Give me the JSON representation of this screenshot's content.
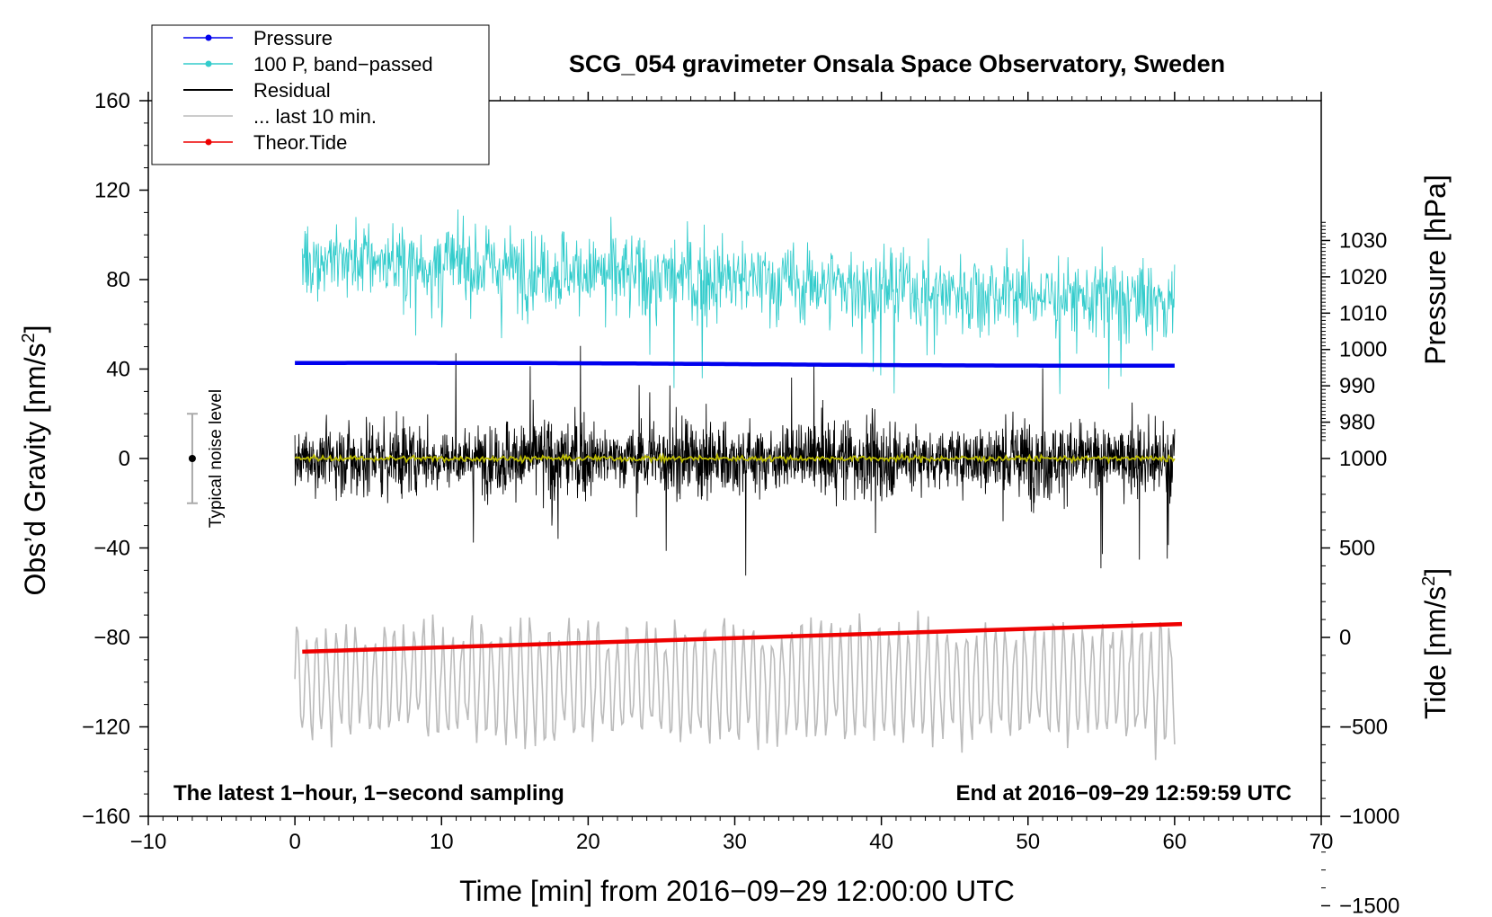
{
  "chart_data": {
    "type": "line",
    "title": "SCG_054 gravimeter Onsala Space Observatory, Sweden",
    "xlabel": "Time [min] from 2016−09−29 12:00:00 UTC",
    "ylabel": "Obs’d Gravity [nm/s",
    "ylabel_sup": "2",
    "ylabel_end": "]",
    "ylabel_right_top": "Pressure [hPa]",
    "ylabel_right_bottom": "Tide [nm/s",
    "ylabel_right_bottom_sup": "2",
    "ylabel_right_bottom_end": "]",
    "xlim": [
      -10,
      70
    ],
    "ylim": [
      -160,
      160
    ],
    "pressure_axis": {
      "value_at_gravity_zero": 970,
      "hpa_per_gravity_unit": 0.6154
    },
    "tide_axis": {
      "value_at_gravity_zero": 0,
      "tide_per_gravity_unit": 12.5,
      "offset_gravity": -80
    },
    "x_ticks": [
      {
        "v": -10,
        "label": "−10"
      },
      {
        "v": 0,
        "label": "0"
      },
      {
        "v": 10,
        "label": "10"
      },
      {
        "v": 20,
        "label": "20"
      },
      {
        "v": 30,
        "label": "30"
      },
      {
        "v": 40,
        "label": "40"
      },
      {
        "v": 50,
        "label": "50"
      },
      {
        "v": 60,
        "label": "60"
      },
      {
        "v": 70,
        "label": "70"
      }
    ],
    "y_ticks": [
      {
        "v": 160,
        "label": "160"
      },
      {
        "v": 120,
        "label": "120"
      },
      {
        "v": 80,
        "label": "80"
      },
      {
        "v": 40,
        "label": "40"
      },
      {
        "v": 0,
        "label": "0"
      },
      {
        "v": -40,
        "label": "−40"
      },
      {
        "v": -80,
        "label": "−80"
      },
      {
        "v": -120,
        "label": "−120"
      },
      {
        "v": -160,
        "label": "−160"
      }
    ],
    "pressure_ticks": [
      {
        "v": 1030,
        "label": "1030"
      },
      {
        "v": 1020,
        "label": "1020"
      },
      {
        "v": 1010,
        "label": "1010"
      },
      {
        "v": 1000,
        "label": "1000"
      },
      {
        "v": 990,
        "label": "990"
      },
      {
        "v": 980,
        "label": "980"
      }
    ],
    "tide_ticks": [
      {
        "v": 1000,
        "label": "1000"
      },
      {
        "v": 500,
        "label": "500"
      },
      {
        "v": 0,
        "label": "0"
      },
      {
        "v": -500,
        "label": "−500"
      },
      {
        "v": -1000,
        "label": "−1000"
      },
      {
        "v": -1500,
        "label": "−1500"
      }
    ],
    "series": [
      {
        "name": "Pressure",
        "color": "#0000ee",
        "unit": "hPa",
        "start": 996.3,
        "end": 995.6,
        "x_range": [
          0,
          60
        ]
      },
      {
        "name": "100 P, band−passed",
        "color": "#33cccc",
        "unit": "nm/s2",
        "mean_start": 90,
        "mean_end": 70,
        "amplitude": 16,
        "x_range": [
          0.5,
          60
        ]
      },
      {
        "name": "Residual",
        "color": "#000000",
        "unit": "nm/s2",
        "mean": 0,
        "amplitude": 20,
        "x_range": [
          0,
          60
        ]
      },
      {
        "name": "... last 10 min.",
        "color": "#bbbbbb",
        "unit": "nm/s2",
        "mean": -100,
        "amplitude": 25,
        "x_range": [
          0,
          60
        ]
      },
      {
        "name": "Theor.Tide",
        "color": "#ee0000",
        "unit": "nm/s2",
        "start": -80,
        "end": 75,
        "x_range": [
          0.5,
          60.5
        ]
      },
      {
        "name": "Smoothed residual",
        "color": "#bbbb00",
        "unit": "nm/s2",
        "mean": 0,
        "amplitude": 1.5,
        "x_range": [
          0,
          60
        ]
      }
    ],
    "noise_level": {
      "label": "Typical noise level",
      "x": -7,
      "center": 0,
      "half_range": 20
    },
    "annotations": {
      "left": "The latest 1−hour, 1−second sampling",
      "right": "End at 2016−09−29 12:59:59 UTC"
    },
    "legend": [
      {
        "label": "Pressure",
        "color": "#0000ee",
        "marker": true
      },
      {
        "label": "100 P, band−passed",
        "color": "#33cccc",
        "marker": true
      },
      {
        "label": "Residual",
        "color": "#000000",
        "marker": false
      },
      {
        "label": "... last 10 min.",
        "color": "#bbbbbb",
        "marker": false
      },
      {
        "label": "Theor.Tide",
        "color": "#ee0000",
        "marker": true
      }
    ]
  }
}
